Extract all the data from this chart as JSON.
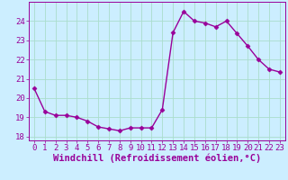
{
  "hours": [
    0,
    1,
    2,
    3,
    4,
    5,
    6,
    7,
    8,
    9,
    10,
    11,
    12,
    13,
    14,
    15,
    16,
    17,
    18,
    19,
    20,
    21,
    22,
    23
  ],
  "windchill": [
    20.5,
    19.3,
    19.1,
    19.1,
    19.0,
    18.8,
    18.5,
    18.4,
    18.3,
    18.45,
    18.45,
    18.45,
    19.4,
    23.4,
    24.5,
    24.0,
    23.9,
    23.7,
    24.0,
    23.35,
    22.7,
    22.0,
    21.5,
    21.35
  ],
  "line_color": "#990099",
  "bg_color": "#cceeff",
  "grid_color": "#aaddcc",
  "xlabel": "Windchill (Refroidissement éolien,°C)",
  "ylabel": "",
  "ylim": [
    17.8,
    25.0
  ],
  "xlim": [
    -0.5,
    23.5
  ],
  "yticks": [
    18,
    19,
    20,
    21,
    22,
    23,
    24
  ],
  "xticks": [
    0,
    1,
    2,
    3,
    4,
    5,
    6,
    7,
    8,
    9,
    10,
    11,
    12,
    13,
    14,
    15,
    16,
    17,
    18,
    19,
    20,
    21,
    22,
    23
  ],
  "marker": "D",
  "marker_size": 2.5,
  "line_width": 1.0,
  "xlabel_fontsize": 7.5,
  "tick_fontsize": 6.5,
  "ytick_fontsize": 6.5
}
